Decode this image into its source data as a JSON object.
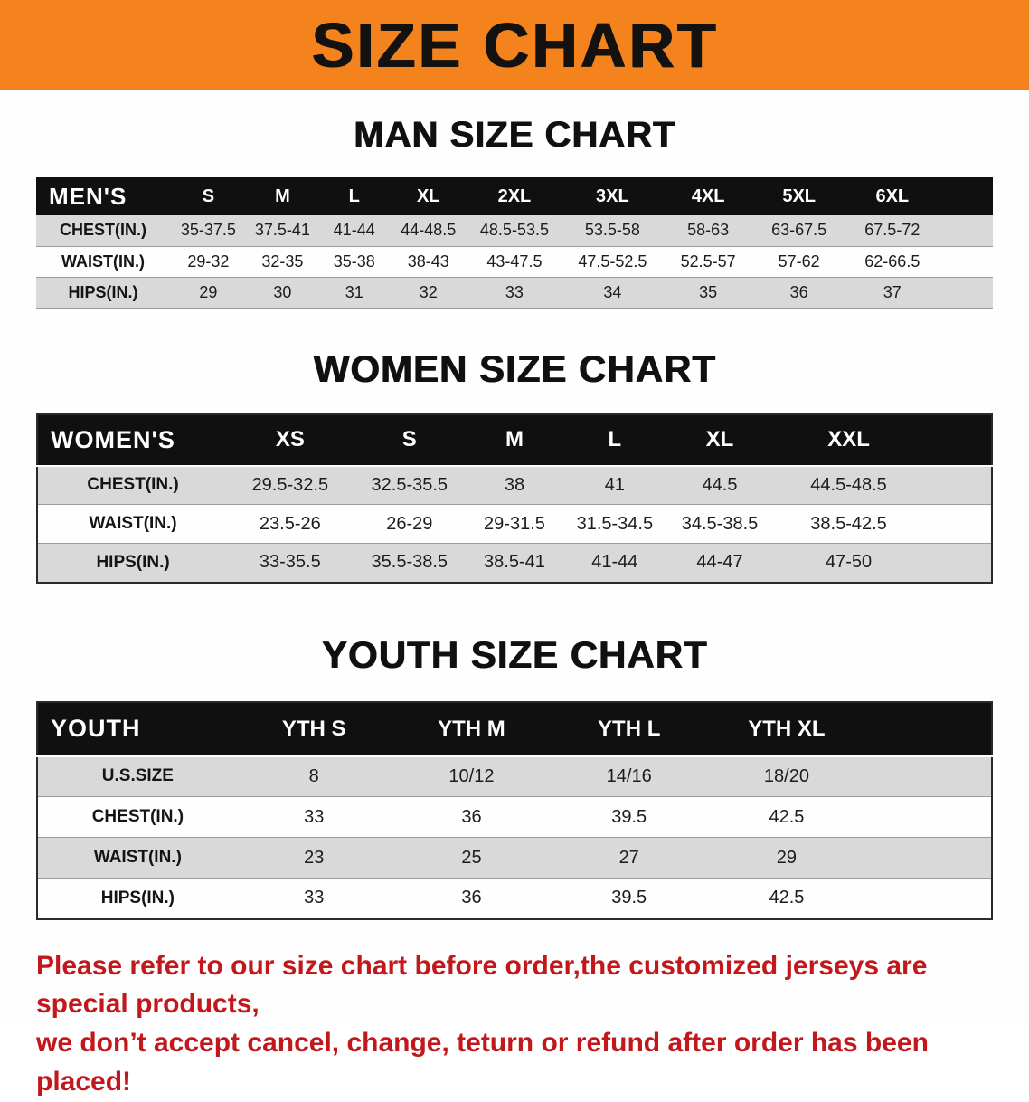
{
  "colors": {
    "banner_bg": "#F4831D",
    "header_bg": "#101010",
    "stripe_bg": "#D9D9D9",
    "disclaimer_color": "#C2181B",
    "title_color": "#141210"
  },
  "banner": {
    "title": "SIZE CHART"
  },
  "men": {
    "heading": "MAN SIZE CHART",
    "table": {
      "header": [
        "MEN'S",
        "S",
        "M",
        "L",
        "XL",
        "2XL",
        "3XL",
        "4XL",
        "5XL",
        "6XL"
      ],
      "rows": [
        {
          "label": "CHEST(IN.)",
          "values": [
            "35-37.5",
            "37.5-41",
            "41-44",
            "44-48.5",
            "48.5-53.5",
            "53.5-58",
            "58-63",
            "63-67.5",
            "67.5-72"
          ]
        },
        {
          "label": "WAIST(IN.)",
          "values": [
            "29-32",
            "32-35",
            "35-38",
            "38-43",
            "43-47.5",
            "47.5-52.5",
            "52.5-57",
            "57-62",
            "62-66.5"
          ]
        },
        {
          "label": "HIPS(IN.)",
          "values": [
            "29",
            "30",
            "31",
            "32",
            "33",
            "34",
            "35",
            "36",
            "37"
          ]
        }
      ]
    }
  },
  "women": {
    "heading": "WOMEN SIZE CHART",
    "table": {
      "header": [
        "WOMEN'S",
        "XS",
        "S",
        "M",
        "L",
        "XL",
        "XXL"
      ],
      "rows": [
        {
          "label": "CHEST(IN.)",
          "values": [
            "29.5-32.5",
            "32.5-35.5",
            "38",
            "41",
            "44.5",
            "44.5-48.5"
          ]
        },
        {
          "label": "WAIST(IN.)",
          "values": [
            "23.5-26",
            "26-29",
            "29-31.5",
            "31.5-34.5",
            "34.5-38.5",
            "38.5-42.5"
          ]
        },
        {
          "label": "HIPS(IN.)",
          "values": [
            "33-35.5",
            "35.5-38.5",
            "38.5-41",
            "41-44",
            "44-47",
            "47-50"
          ]
        }
      ]
    }
  },
  "youth": {
    "heading": "YOUTH SIZE CHART",
    "table": {
      "header": [
        "YOUTH",
        "YTH S",
        "YTH M",
        "YTH L",
        "YTH XL"
      ],
      "rows": [
        {
          "label": "U.S.SIZE",
          "values": [
            "8",
            "10/12",
            "14/16",
            "18/20"
          ]
        },
        {
          "label": "CHEST(IN.)",
          "values": [
            "33",
            "36",
            "39.5",
            "42.5"
          ]
        },
        {
          "label": "WAIST(IN.)",
          "values": [
            "23",
            "25",
            "27",
            "29"
          ]
        },
        {
          "label": "HIPS(IN.)",
          "values": [
            "33",
            "36",
            "39.5",
            "42.5"
          ]
        }
      ]
    }
  },
  "disclaimer": {
    "line1": "Please refer to our size chart before order,the customized jerseys are special products,",
    "line2": "we don’t accept cancel, change, teturn or refund after order has been placed!"
  }
}
